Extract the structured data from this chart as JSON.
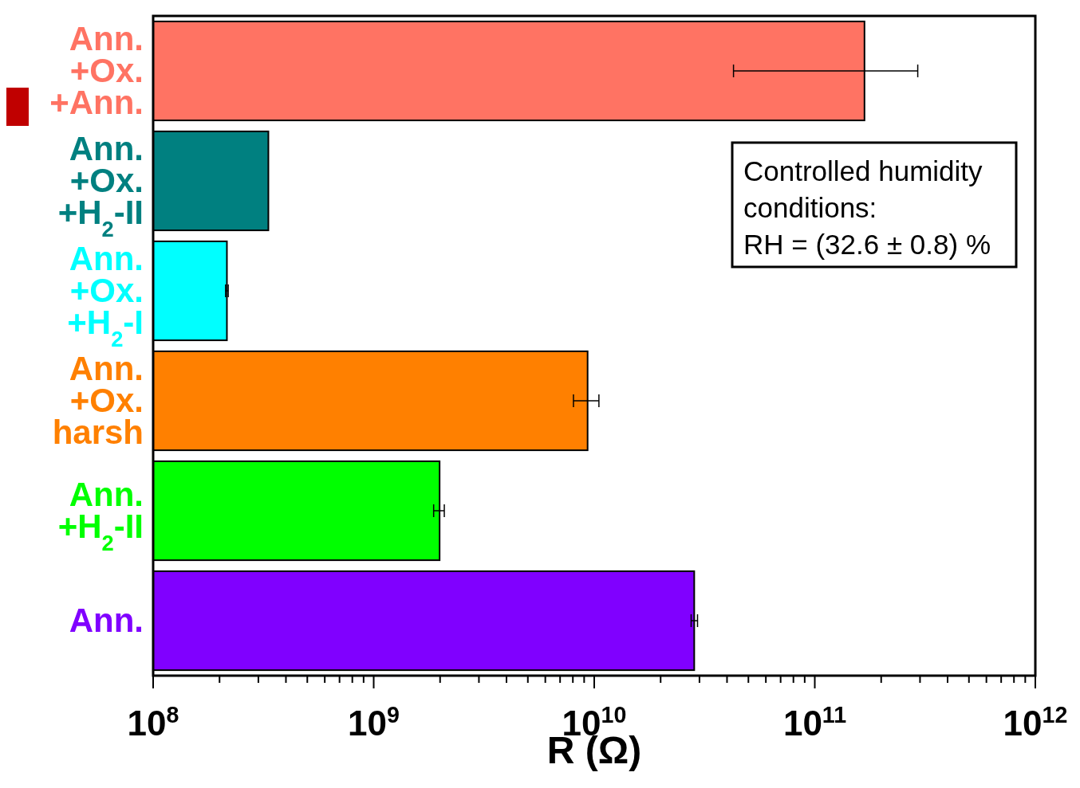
{
  "chart_data": {
    "type": "bar",
    "orientation": "horizontal",
    "log": "x",
    "xlabel": "R (Ω)",
    "categories": [
      "Ann. +Ox. +Ann.",
      "Ann. +Ox. +H$_{2}$-II",
      "Ann. +Ox. +H$_{2}$-I",
      "Ann. +Ox. harsh",
      "Ann. +H$_{2}$-II",
      "Ann."
    ],
    "values": [
      168000000000.0,
      333000000.0,
      216000000.0,
      9330000000.0,
      1990000000.0,
      28400000000.0
    ],
    "errors": [
      [
        42800000000.0,
        293000000000.0
      ],
      null,
      [
        213000000.0,
        219000000.0
      ],
      [
        8050000000.0,
        10500000000.0
      ],
      [
        1870000000.0,
        2090000000.0
      ],
      [
        27500000000.0,
        29400000000.0
      ]
    ],
    "colors": [
      "#ff7363",
      "#008080",
      "#00ffff",
      "#ff8000",
      "#00ff00",
      "#8000ff"
    ],
    "xlim": [
      100000000.0,
      1000000000000.0
    ],
    "xticks": [
      {
        "value": 100000000.0,
        "label": "10$^{8}$"
      },
      {
        "value": 200000000.0,
        "label": null
      },
      {
        "value": 300000000.0,
        "label": null
      },
      {
        "value": 400000000.0,
        "label": null
      },
      {
        "value": 500000000.0,
        "label": null
      },
      {
        "value": 600000000.0,
        "label": null
      },
      {
        "value": 700000000.0,
        "label": null
      },
      {
        "value": 800000000.0,
        "label": null
      },
      {
        "value": 900000000.0,
        "label": null
      },
      {
        "value": 1000000000.0,
        "label": "10$^{9}$"
      },
      {
        "value": 2000000000.0,
        "label": null
      },
      {
        "value": 3000000000.0,
        "label": null
      },
      {
        "value": 4000000000.0,
        "label": null
      },
      {
        "value": 5000000000.0,
        "label": null
      },
      {
        "value": 6000000000.0,
        "label": null
      },
      {
        "value": 7000000000.0,
        "label": null
      },
      {
        "value": 8000000000.0,
        "label": null
      },
      {
        "value": 9000000000.0,
        "label": null
      },
      {
        "value": 10000000000.0,
        "label": "10$^{10}$"
      },
      {
        "value": 20000000000.0,
        "label": null
      },
      {
        "value": 30000000000.0,
        "label": null
      },
      {
        "value": 40000000000.0,
        "label": null
      },
      {
        "value": 50000000000.0,
        "label": null
      },
      {
        "value": 60000000000.0,
        "label": null
      },
      {
        "value": 70000000000.0,
        "label": null
      },
      {
        "value": 80000000000.0,
        "label": null
      },
      {
        "value": 90000000000.0,
        "label": null
      },
      {
        "value": 100000000000.0,
        "label": "10$^{11}$"
      },
      {
        "value": 200000000000.0,
        "label": null
      },
      {
        "value": 300000000000.0,
        "label": null
      },
      {
        "value": 400000000000.0,
        "label": null
      },
      {
        "value": 500000000000.0,
        "label": null
      },
      {
        "value": 600000000000.0,
        "label": null
      },
      {
        "value": 700000000000.0,
        "label": null
      },
      {
        "value": 800000000000.0,
        "label": null
      },
      {
        "value": 900000000000.0,
        "label": null
      },
      {
        "value": 1000000000000.0,
        "label": "10$^{12}$"
      }
    ],
    "annotations": [
      "Controlled humidity\nconditions:\nRH = (32.6 ± 0.8) %"
    ]
  }
}
